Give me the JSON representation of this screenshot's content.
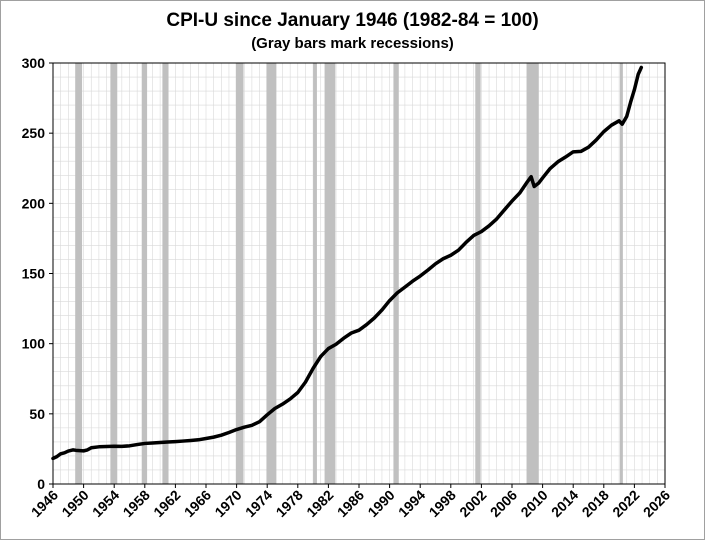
{
  "chart_data": {
    "type": "line",
    "title": "CPI-U since January 1946 (1982-84 = 100)",
    "subtitle": "(Gray bars mark recessions)",
    "xlim": [
      1946,
      2026
    ],
    "ylim": [
      0,
      300
    ],
    "x_ticks": [
      "1946",
      "1950",
      "1954",
      "1958",
      "1962",
      "1966",
      "1970",
      "1974",
      "1978",
      "1982",
      "1986",
      "1990",
      "1994",
      "1998",
      "2002",
      "2006",
      "2010",
      "2014",
      "2018",
      "2022",
      "2026"
    ],
    "y_ticks": [
      "0",
      "50",
      "100",
      "150",
      "200",
      "250",
      "300"
    ],
    "grid": true,
    "recessions": [
      [
        1948.9,
        1949.8
      ],
      [
        1953.5,
        1954.4
      ],
      [
        1957.6,
        1958.3
      ],
      [
        1960.3,
        1961.1
      ],
      [
        1969.9,
        1970.9
      ],
      [
        1973.9,
        1975.2
      ],
      [
        1980.0,
        1980.5
      ],
      [
        1981.5,
        1982.9
      ],
      [
        1990.5,
        1991.2
      ],
      [
        2001.2,
        2001.9
      ],
      [
        2007.9,
        2009.5
      ],
      [
        2020.1,
        2020.4
      ]
    ],
    "series": [
      {
        "values": [
          [
            1946,
            18.2
          ],
          [
            1946.5,
            19.5
          ],
          [
            1947,
            21.5
          ],
          [
            1947.5,
            22.2
          ],
          [
            1948,
            23.5
          ],
          [
            1948.6,
            24.3
          ],
          [
            1949,
            24.0
          ],
          [
            1949.5,
            23.8
          ],
          [
            1950,
            23.6
          ],
          [
            1950.5,
            24.3
          ],
          [
            1951,
            25.8
          ],
          [
            1952,
            26.5
          ],
          [
            1953,
            26.7
          ],
          [
            1954,
            26.9
          ],
          [
            1955,
            26.8
          ],
          [
            1956,
            27.2
          ],
          [
            1957,
            28.1
          ],
          [
            1958,
            28.9
          ],
          [
            1959,
            29.2
          ],
          [
            1960,
            29.6
          ],
          [
            1961,
            29.9
          ],
          [
            1962,
            30.2
          ],
          [
            1963,
            30.6
          ],
          [
            1964,
            31.0
          ],
          [
            1965,
            31.5
          ],
          [
            1966,
            32.4
          ],
          [
            1967,
            33.4
          ],
          [
            1968,
            34.8
          ],
          [
            1969,
            36.7
          ],
          [
            1970,
            38.8
          ],
          [
            1971,
            40.5
          ],
          [
            1972,
            41.8
          ],
          [
            1973,
            44.4
          ],
          [
            1974,
            49.3
          ],
          [
            1975,
            53.8
          ],
          [
            1976,
            56.9
          ],
          [
            1977,
            60.6
          ],
          [
            1978,
            65.2
          ],
          [
            1979,
            72.6
          ],
          [
            1980,
            82.4
          ],
          [
            1981,
            90.9
          ],
          [
            1982,
            96.5
          ],
          [
            1983,
            99.6
          ],
          [
            1984,
            103.9
          ],
          [
            1985,
            107.6
          ],
          [
            1986,
            109.6
          ],
          [
            1987,
            113.6
          ],
          [
            1988,
            118.3
          ],
          [
            1989,
            124.0
          ],
          [
            1990,
            130.7
          ],
          [
            1991,
            136.2
          ],
          [
            1992,
            140.3
          ],
          [
            1993,
            144.5
          ],
          [
            1994,
            148.2
          ],
          [
            1995,
            152.4
          ],
          [
            1996,
            156.9
          ],
          [
            1997,
            160.5
          ],
          [
            1998,
            163.0
          ],
          [
            1999,
            166.6
          ],
          [
            2000,
            172.2
          ],
          [
            2001,
            177.1
          ],
          [
            2002,
            179.9
          ],
          [
            2003,
            184.0
          ],
          [
            2004,
            188.9
          ],
          [
            2005,
            195.3
          ],
          [
            2006,
            201.6
          ],
          [
            2007,
            207.3
          ],
          [
            2008,
            215.3
          ],
          [
            2008.5,
            219.0
          ],
          [
            2008.9,
            212.0
          ],
          [
            2009.5,
            214.5
          ],
          [
            2010,
            218.1
          ],
          [
            2011,
            224.9
          ],
          [
            2012,
            229.6
          ],
          [
            2013,
            233.0
          ],
          [
            2014,
            236.7
          ],
          [
            2015,
            237.0
          ],
          [
            2016,
            240.0
          ],
          [
            2017,
            245.1
          ],
          [
            2018,
            251.1
          ],
          [
            2019,
            255.7
          ],
          [
            2020,
            258.8
          ],
          [
            2020.4,
            256.4
          ],
          [
            2021,
            262.0
          ],
          [
            2021.5,
            272.0
          ],
          [
            2022,
            281.0
          ],
          [
            2022.5,
            292.0
          ],
          [
            2022.9,
            296.8
          ]
        ]
      }
    ]
  },
  "style": {
    "line_color": "#000000",
    "recession_color": "#c0c0c0",
    "grid_color": "#d9d9d9"
  }
}
